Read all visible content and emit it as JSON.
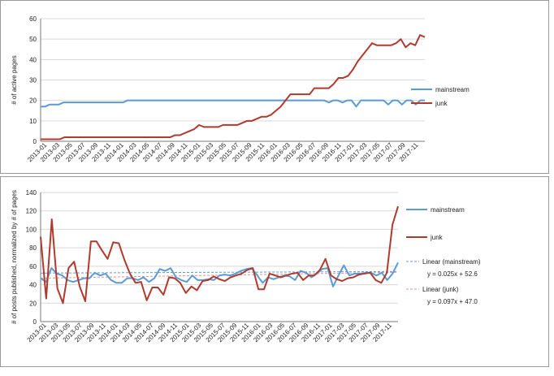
{
  "chart_data": [
    {
      "type": "line",
      "title": "",
      "xlabel": "",
      "ylabel": "# of active pages",
      "ylim": [
        0,
        60
      ],
      "yticks": [
        0,
        10,
        20,
        30,
        40,
        50,
        60
      ],
      "grid": "horizontal",
      "legend_position": "right",
      "x_tick_labels": [
        "2013-01",
        "2013-03",
        "2013-05",
        "2013-07",
        "2013-09",
        "2013-11",
        "2014-01",
        "2014-03",
        "2014-05",
        "2014-07",
        "2014-09",
        "2014-11",
        "2015-01",
        "2015-03",
        "2015-05",
        "2015-07",
        "2015-09",
        "2015-11",
        "2016-01",
        "2016-03",
        "2016-05",
        "2016-07",
        "2016-09",
        "2016-11",
        "2017-01",
        "2017-03",
        "2017-05",
        "2017-07",
        "2017-09",
        "2017-11"
      ],
      "series": [
        {
          "name": "mainstream",
          "color": "#5b9bd5",
          "values": [
            17,
            17,
            18,
            18,
            18,
            19,
            19,
            19,
            19,
            19,
            19,
            19,
            19,
            19,
            19,
            19,
            19,
            19,
            19,
            20,
            20,
            20,
            20,
            20,
            20,
            20,
            20,
            20,
            20,
            20,
            20,
            20,
            20,
            20,
            20,
            20,
            20,
            20,
            20,
            20,
            20,
            20,
            20,
            20,
            20,
            20,
            20,
            20,
            20,
            20,
            20,
            20,
            20,
            20,
            20,
            20,
            20,
            20,
            20,
            20,
            20,
            20,
            20,
            19,
            20,
            20,
            19,
            20,
            20,
            17,
            20,
            20,
            20,
            20,
            20,
            20,
            18,
            20,
            20,
            18,
            20,
            20,
            18,
            20,
            20
          ]
        },
        {
          "name": "junk",
          "color": "#b03a2e",
          "values": [
            1,
            1,
            1,
            1,
            1,
            2,
            2,
            2,
            2,
            2,
            2,
            2,
            2,
            2,
            2,
            2,
            2,
            2,
            2,
            2,
            2,
            2,
            2,
            2,
            2,
            2,
            2,
            2,
            3,
            3,
            4,
            5,
            6,
            8,
            7,
            7,
            7,
            7,
            8,
            8,
            8,
            8,
            9,
            10,
            10,
            11,
            12,
            12,
            13,
            15,
            17,
            20,
            23,
            23,
            23,
            23,
            23,
            26,
            26,
            26,
            26,
            28,
            31,
            31,
            32,
            35,
            39,
            42,
            45,
            48,
            47,
            47,
            47,
            47,
            48,
            50,
            46,
            48,
            47,
            52,
            51
          ]
        }
      ]
    },
    {
      "type": "line",
      "title": "",
      "xlabel": "",
      "ylabel": "# of posts published, normalized by # of pages",
      "ylim": [
        0,
        140
      ],
      "yticks": [
        0,
        20,
        40,
        60,
        80,
        100,
        120,
        140
      ],
      "grid": "horizontal",
      "legend_position": "right",
      "x_tick_labels": [
        "2013-01",
        "2013-03",
        "2013-05",
        "2013-07",
        "2013-09",
        "2013-11",
        "2014-01",
        "2014-03",
        "2014-05",
        "2014-07",
        "2014-09",
        "2014-11",
        "2015-01",
        "2015-03",
        "2015-05",
        "2015-07",
        "2015-09",
        "2015-11",
        "2016-01",
        "2016-03",
        "2016-05",
        "2016-07",
        "2016-09",
        "2016-11",
        "2017-01",
        "2017-03",
        "2017-05",
        "2017-07",
        "2017-09",
        "2017-11"
      ],
      "series": [
        {
          "name": "mainstream",
          "color": "#5b9bd5",
          "values": [
            47,
            43,
            58,
            52,
            50,
            45,
            43,
            45,
            47,
            47,
            53,
            50,
            52,
            45,
            42,
            42,
            47,
            47,
            45,
            48,
            43,
            47,
            57,
            55,
            58,
            48,
            45,
            43,
            50,
            45,
            45,
            46,
            45,
            50,
            51,
            50,
            52,
            55,
            57,
            58,
            50,
            42,
            48,
            46,
            48,
            50,
            49,
            45,
            55,
            53,
            48,
            52,
            57,
            58,
            38,
            50,
            61,
            50,
            52,
            52,
            53,
            53,
            50,
            53,
            45,
            52,
            64
          ]
        },
        {
          "name": "junk",
          "color": "#b03a2e",
          "values": [
            92,
            25,
            111,
            36,
            20,
            58,
            65,
            38,
            22,
            87,
            87,
            77,
            68,
            86,
            85,
            67,
            52,
            42,
            43,
            23,
            37,
            37,
            29,
            48,
            47,
            42,
            31,
            38,
            34,
            44,
            45,
            49,
            46,
            44,
            48,
            50,
            52,
            56,
            58,
            35,
            35,
            52,
            50,
            48,
            50,
            52,
            53,
            45,
            50,
            50,
            56,
            68,
            50,
            46,
            44,
            47,
            48,
            51,
            52,
            53,
            45,
            42,
            53,
            105,
            125
          ]
        }
      ],
      "trendlines": [
        {
          "name": "Linear (mainstream)",
          "equation": "y = 0.025x + 52.6",
          "slope": 0.025,
          "intercept": 52.6,
          "color": "#5b9bd5"
        },
        {
          "name": "Linear (junk)",
          "equation": "y = 0.097x + 47.0",
          "slope": 0.097,
          "intercept": 47.0,
          "color": "#e8908a"
        }
      ]
    }
  ]
}
